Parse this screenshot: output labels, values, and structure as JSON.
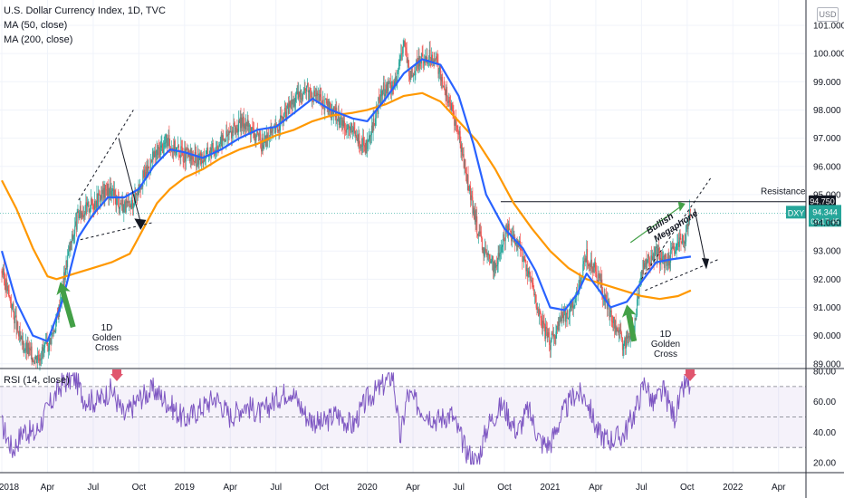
{
  "header": {
    "title": "U.S. Dollar Currency Index, 1D, TVC",
    "ma50": "MA (50, close)",
    "ma200": "MA (200, close)",
    "rsi": "RSI (14, close)"
  },
  "currency_badge": "USD",
  "ticker": {
    "symbol": "DXY",
    "price": "94.344",
    "countdown": "06:17:45"
  },
  "resistance": {
    "label": "Resistance",
    "price_label": "94.750",
    "value": 94.75
  },
  "annotations": {
    "megaphone_line1": "Bullish",
    "megaphone_line2": "Megaphone",
    "gc1": [
      "1D",
      "Golden",
      "Cross"
    ],
    "gc2": [
      "1D",
      "Golden",
      "Cross"
    ]
  },
  "colors": {
    "candle_up": "#26a69a",
    "candle_down": "#ef5350",
    "ma50": "#2962ff",
    "ma200": "#ff9800",
    "rsi": "#7e57c2",
    "arrow_green": "#43a047",
    "arrow_red": "#e0566e"
  },
  "chart_data": [
    {
      "type": "candlestick",
      "title": "U.S. Dollar Currency Index, 1D, TVC",
      "y_ticks": [
        "101.000",
        "100.000",
        "99.000",
        "98.000",
        "97.000",
        "96.000",
        "95.000",
        "94.000",
        "93.000",
        "92.000",
        "91.000",
        "90.000",
        "89.000"
      ],
      "ylim": [
        88.3,
        101.3
      ],
      "x_ticks": [
        "2018",
        "Apr",
        "Jul",
        "Oct",
        "2019",
        "Apr",
        "Jul",
        "Oct",
        "2020",
        "Apr",
        "Jul",
        "Oct",
        "2021",
        "Apr",
        "Jul",
        "Oct",
        "2022",
        "Apr"
      ],
      "price_path": [
        [
          2018.0,
          92.3
        ],
        [
          2018.05,
          91.2
        ],
        [
          2018.1,
          89.8
        ],
        [
          2018.18,
          89.2
        ],
        [
          2018.25,
          89.6
        ],
        [
          2018.3,
          90.5
        ],
        [
          2018.36,
          92.8
        ],
        [
          2018.42,
          94.3
        ],
        [
          2018.5,
          94.7
        ],
        [
          2018.58,
          95.2
        ],
        [
          2018.63,
          94.8
        ],
        [
          2018.7,
          94.5
        ],
        [
          2018.75,
          95.3
        ],
        [
          2018.83,
          96.3
        ],
        [
          2018.9,
          96.9
        ],
        [
          2019.0,
          96.4
        ],
        [
          2019.08,
          96.2
        ],
        [
          2019.17,
          96.7
        ],
        [
          2019.25,
          97.2
        ],
        [
          2019.33,
          97.6
        ],
        [
          2019.42,
          96.8
        ],
        [
          2019.5,
          97.3
        ],
        [
          2019.58,
          98.2
        ],
        [
          2019.67,
          98.8
        ],
        [
          2019.75,
          98.3
        ],
        [
          2019.83,
          97.8
        ],
        [
          2019.92,
          97.2
        ],
        [
          2020.0,
          96.6
        ],
        [
          2020.08,
          98.7
        ],
        [
          2020.16,
          99.0
        ],
        [
          2020.2,
          100.6
        ],
        [
          2020.23,
          99.1
        ],
        [
          2020.28,
          99.7
        ],
        [
          2020.36,
          100.0
        ],
        [
          2020.42,
          98.9
        ],
        [
          2020.5,
          97.2
        ],
        [
          2020.58,
          94.4
        ],
        [
          2020.63,
          93.1
        ],
        [
          2020.7,
          92.4
        ],
        [
          2020.76,
          93.8
        ],
        [
          2020.82,
          93.3
        ],
        [
          2020.88,
          92.3
        ],
        [
          2020.95,
          90.5
        ],
        [
          2021.0,
          89.7
        ],
        [
          2021.05,
          90.5
        ],
        [
          2021.12,
          91.0
        ],
        [
          2021.2,
          92.8
        ],
        [
          2021.25,
          92.3
        ],
        [
          2021.33,
          90.8
        ],
        [
          2021.4,
          89.7
        ],
        [
          2021.46,
          90.3
        ],
        [
          2021.5,
          92.4
        ],
        [
          2021.58,
          92.9
        ],
        [
          2021.63,
          92.6
        ],
        [
          2021.7,
          93.2
        ],
        [
          2021.74,
          93.5
        ],
        [
          2021.77,
          94.5
        ]
      ],
      "ma50": [
        [
          2018.0,
          93.0
        ],
        [
          2018.08,
          91.2
        ],
        [
          2018.17,
          90.0
        ],
        [
          2018.25,
          89.8
        ],
        [
          2018.33,
          91.2
        ],
        [
          2018.42,
          93.5
        ],
        [
          2018.5,
          94.3
        ],
        [
          2018.58,
          94.9
        ],
        [
          2018.67,
          94.9
        ],
        [
          2018.75,
          95.2
        ],
        [
          2018.83,
          96.0
        ],
        [
          2018.92,
          96.6
        ],
        [
          2019.0,
          96.5
        ],
        [
          2019.1,
          96.3
        ],
        [
          2019.2,
          96.6
        ],
        [
          2019.3,
          97.0
        ],
        [
          2019.4,
          97.3
        ],
        [
          2019.5,
          97.4
        ],
        [
          2019.6,
          97.9
        ],
        [
          2019.7,
          98.4
        ],
        [
          2019.8,
          98.0
        ],
        [
          2019.92,
          97.7
        ],
        [
          2020.0,
          97.6
        ],
        [
          2020.1,
          98.4
        ],
        [
          2020.2,
          99.3
        ],
        [
          2020.3,
          99.8
        ],
        [
          2020.4,
          99.6
        ],
        [
          2020.5,
          98.5
        ],
        [
          2020.58,
          96.8
        ],
        [
          2020.65,
          95.0
        ],
        [
          2020.75,
          93.8
        ],
        [
          2020.85,
          93.1
        ],
        [
          2020.92,
          92.3
        ],
        [
          2021.0,
          91.0
        ],
        [
          2021.08,
          90.9
        ],
        [
          2021.15,
          91.5
        ],
        [
          2021.2,
          92.2
        ],
        [
          2021.27,
          91.6
        ],
        [
          2021.33,
          91.0
        ],
        [
          2021.42,
          91.2
        ],
        [
          2021.5,
          91.9
        ],
        [
          2021.58,
          92.6
        ],
        [
          2021.66,
          92.7
        ],
        [
          2021.77,
          92.8
        ]
      ],
      "ma200": [
        [
          2018.0,
          95.5
        ],
        [
          2018.08,
          94.5
        ],
        [
          2018.17,
          93.1
        ],
        [
          2018.25,
          92.1
        ],
        [
          2018.3,
          92.0
        ],
        [
          2018.4,
          92.2
        ],
        [
          2018.5,
          92.4
        ],
        [
          2018.6,
          92.6
        ],
        [
          2018.7,
          92.9
        ],
        [
          2018.75,
          93.5
        ],
        [
          2018.85,
          94.7
        ],
        [
          2018.92,
          95.2
        ],
        [
          2019.0,
          95.6
        ],
        [
          2019.1,
          95.9
        ],
        [
          2019.2,
          96.3
        ],
        [
          2019.3,
          96.6
        ],
        [
          2019.4,
          96.8
        ],
        [
          2019.5,
          97.1
        ],
        [
          2019.6,
          97.3
        ],
        [
          2019.7,
          97.6
        ],
        [
          2019.8,
          97.8
        ],
        [
          2019.92,
          97.9
        ],
        [
          2020.0,
          98.0
        ],
        [
          2020.1,
          98.2
        ],
        [
          2020.2,
          98.5
        ],
        [
          2020.3,
          98.6
        ],
        [
          2020.4,
          98.3
        ],
        [
          2020.5,
          97.6
        ],
        [
          2020.6,
          96.9
        ],
        [
          2020.7,
          95.9
        ],
        [
          2020.8,
          94.7
        ],
        [
          2020.9,
          93.8
        ],
        [
          2021.0,
          93.0
        ],
        [
          2021.1,
          92.4
        ],
        [
          2021.2,
          92.0
        ],
        [
          2021.3,
          91.8
        ],
        [
          2021.4,
          91.6
        ],
        [
          2021.5,
          91.4
        ],
        [
          2021.6,
          91.3
        ],
        [
          2021.7,
          91.4
        ],
        [
          2021.77,
          91.6
        ]
      ]
    },
    {
      "type": "line",
      "title": "RSI (14, close)",
      "y_ticks": [
        "80.00",
        "60.00",
        "40.00",
        "20.00"
      ],
      "ylim": [
        16,
        82
      ],
      "bands": [
        30,
        70
      ],
      "rsi_path": [
        [
          2018.0,
          45
        ],
        [
          2018.06,
          28
        ],
        [
          2018.12,
          42
        ],
        [
          2018.18,
          38
        ],
        [
          2018.25,
          55
        ],
        [
          2018.33,
          72
        ],
        [
          2018.4,
          76
        ],
        [
          2018.45,
          62
        ],
        [
          2018.52,
          60
        ],
        [
          2018.6,
          68
        ],
        [
          2018.67,
          50
        ],
        [
          2018.75,
          62
        ],
        [
          2018.83,
          68
        ],
        [
          2018.92,
          58
        ],
        [
          2019.0,
          48
        ],
        [
          2019.08,
          55
        ],
        [
          2019.17,
          63
        ],
        [
          2019.25,
          50
        ],
        [
          2019.33,
          58
        ],
        [
          2019.42,
          52
        ],
        [
          2019.5,
          62
        ],
        [
          2019.58,
          68
        ],
        [
          2019.67,
          50
        ],
        [
          2019.75,
          45
        ],
        [
          2019.83,
          52
        ],
        [
          2019.92,
          44
        ],
        [
          2020.0,
          62
        ],
        [
          2020.08,
          70
        ],
        [
          2020.14,
          78
        ],
        [
          2020.18,
          35
        ],
        [
          2020.22,
          65
        ],
        [
          2020.3,
          55
        ],
        [
          2020.38,
          48
        ],
        [
          2020.46,
          52
        ],
        [
          2020.54,
          28
        ],
        [
          2020.6,
          20
        ],
        [
          2020.66,
          45
        ],
        [
          2020.74,
          58
        ],
        [
          2020.82,
          40
        ],
        [
          2020.88,
          55
        ],
        [
          2020.95,
          33
        ],
        [
          2021.0,
          32
        ],
        [
          2021.06,
          50
        ],
        [
          2021.14,
          66
        ],
        [
          2021.2,
          62
        ],
        [
          2021.26,
          40
        ],
        [
          2021.32,
          35
        ],
        [
          2021.4,
          38
        ],
        [
          2021.46,
          52
        ],
        [
          2021.52,
          74
        ],
        [
          2021.56,
          58
        ],
        [
          2021.62,
          67
        ],
        [
          2021.68,
          50
        ],
        [
          2021.74,
          72
        ],
        [
          2021.77,
          69
        ]
      ]
    }
  ]
}
